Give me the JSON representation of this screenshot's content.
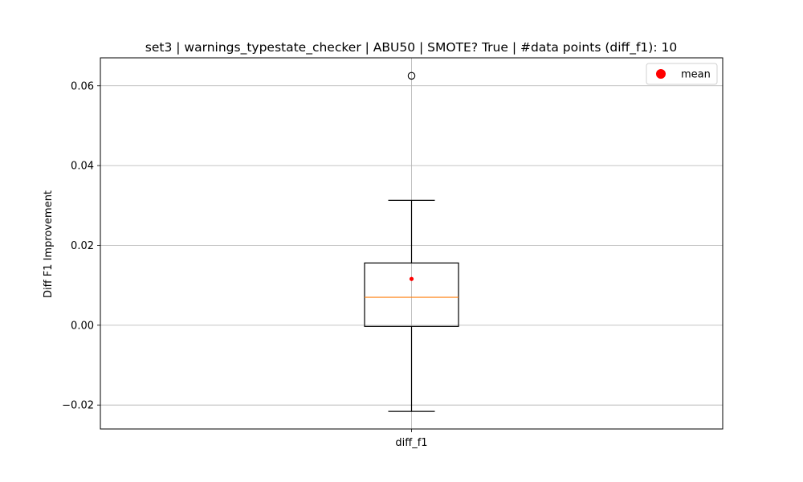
{
  "chart_data": {
    "type": "box",
    "title": "set3 | warnings_typestate_checker | ABU50 | SMOTE? True | #data points (diff_f1): 10",
    "ylabel": "Diff F1 Improvement",
    "xlabel": "",
    "categories": [
      "diff_f1"
    ],
    "ylim": [
      -0.026,
      0.067
    ],
    "yticks": [
      -0.02,
      0.0,
      0.02,
      0.04,
      0.06
    ],
    "ytick_labels": [
      "−0.02",
      "0.00",
      "0.02",
      "0.04",
      "0.06"
    ],
    "grid": true,
    "boxes": [
      {
        "name": "diff_f1",
        "whisker_low": -0.0216,
        "q1": -0.0003,
        "median": 0.007,
        "q3": 0.0156,
        "whisker_high": 0.0313,
        "mean": 0.0116,
        "outliers": [
          0.0625
        ]
      }
    ],
    "legend": {
      "placement": "top-right",
      "entries": [
        "mean"
      ]
    },
    "colors": {
      "box": "#000000",
      "median": "#ff7f0e",
      "mean": "#ff0000",
      "grid": "#b0b0b0"
    }
  }
}
